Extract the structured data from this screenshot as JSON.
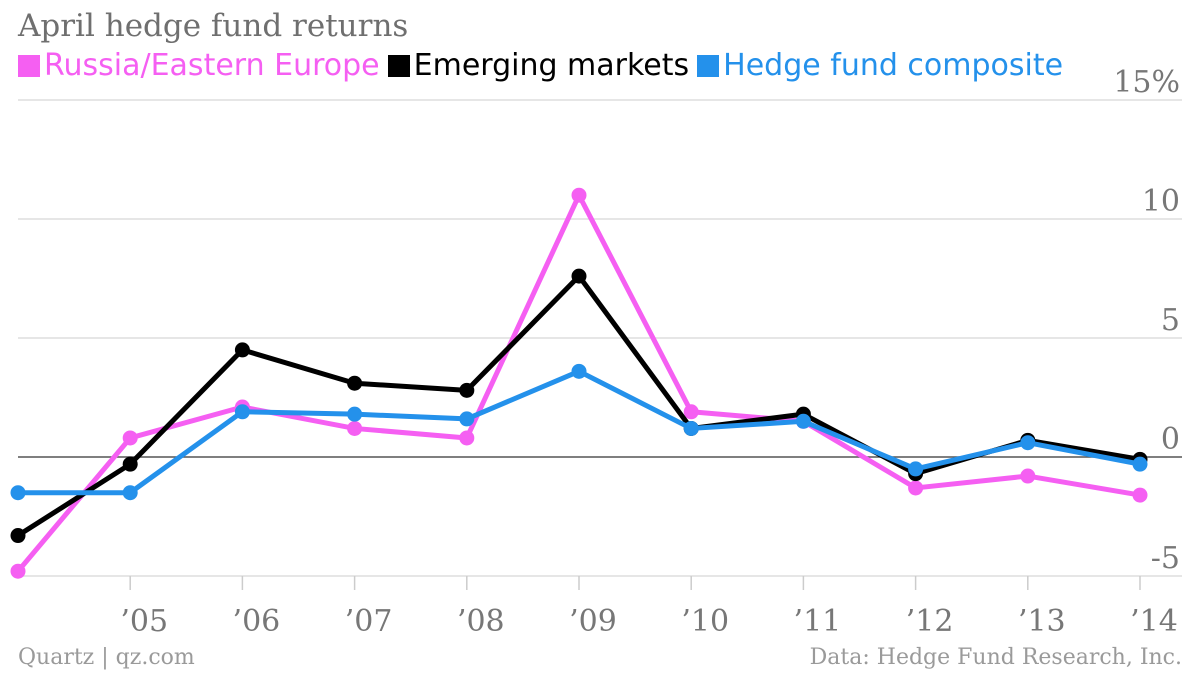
{
  "chart_data": {
    "type": "line",
    "title": "April hedge fund returns",
    "y_unit": "%",
    "ylim": [
      -5,
      15
    ],
    "yticks": [
      -5,
      0,
      5,
      10,
      15
    ],
    "ytick_labels": [
      "-5",
      "0",
      "5",
      "10",
      "15%"
    ],
    "x": [
      2004,
      2005,
      2006,
      2007,
      2008,
      2009,
      2010,
      2011,
      2012,
      2013,
      2014
    ],
    "xlim": [
      2004,
      2014
    ],
    "xticks": [
      2005,
      2006,
      2007,
      2008,
      2009,
      2010,
      2011,
      2012,
      2013,
      2014
    ],
    "xtick_labels": [
      "’05",
      "’06",
      "’07",
      "’08",
      "’09",
      "’10",
      "’11",
      "’12",
      "’13",
      "’14"
    ],
    "grid": true,
    "legend_position": "top-left",
    "series": [
      {
        "name": "Russia/Eastern Europe",
        "color": "#f55ff2",
        "values": [
          -4.8,
          0.8,
          2.1,
          1.2,
          0.8,
          11.0,
          1.9,
          1.5,
          -1.3,
          -0.8,
          -1.6
        ]
      },
      {
        "name": "Emerging markets",
        "color": "#000000",
        "values": [
          -3.3,
          -0.3,
          4.5,
          3.1,
          2.8,
          7.6,
          1.2,
          1.8,
          -0.7,
          0.7,
          -0.1
        ]
      },
      {
        "name": "Hedge fund composite",
        "color": "#2491eb",
        "values": [
          -1.5,
          -1.5,
          1.9,
          1.8,
          1.6,
          3.6,
          1.2,
          1.5,
          -0.5,
          0.6,
          -0.3
        ]
      }
    ]
  },
  "footer": {
    "source_left": "Quartz | qz.com",
    "source_right": "Data: Hedge Fund Research, Inc."
  }
}
